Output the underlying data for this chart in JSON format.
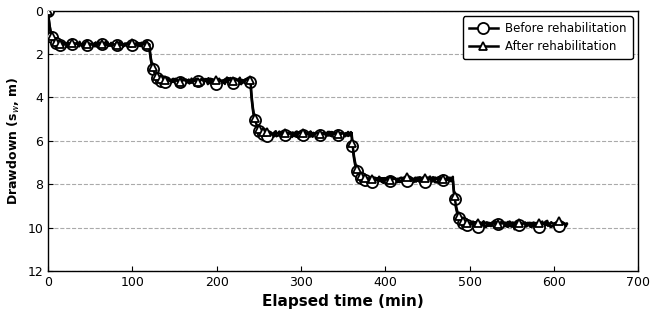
{
  "title": "",
  "xlabel": "Elapsed time (min)",
  "ylabel": "Drawdown (s$_{w}$, m)",
  "xlim": [
    0,
    700
  ],
  "ylim": [
    12,
    0
  ],
  "yticks": [
    0,
    2,
    4,
    6,
    8,
    10,
    12
  ],
  "xticks": [
    0,
    100,
    200,
    300,
    400,
    500,
    600,
    700
  ],
  "legend_labels": [
    "Before rehabilitation",
    "After rehabilitation"
  ],
  "line_color": "#000000",
  "legend_text_color": "#000000",
  "grid_color": "#aaaaaa",
  "background_color": "#ffffff",
  "step_ends_x": [
    120,
    240,
    360,
    480,
    615
  ],
  "step_levels_before": [
    1.6,
    3.3,
    5.75,
    7.85,
    9.9
  ],
  "step_levels_after": [
    1.55,
    3.2,
    5.65,
    7.75,
    9.8
  ],
  "marker_size_before": 8,
  "marker_size_after": 6,
  "linewidth": 1.8
}
